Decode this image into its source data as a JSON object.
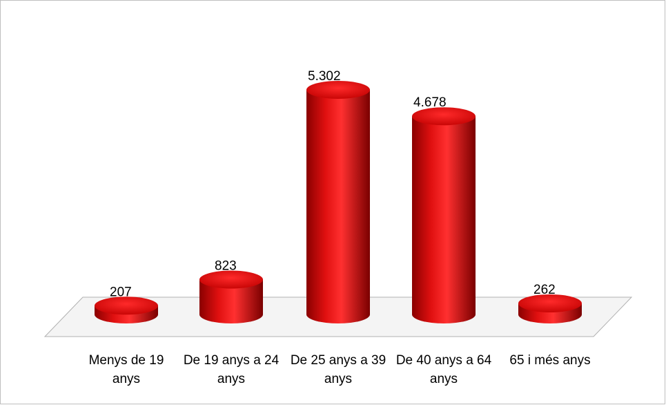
{
  "chart_data": {
    "type": "bar3d",
    "categories": [
      "Menys de 19 anys",
      "De 19 anys a 24 anys",
      "De 25 anys a 39 anys",
      "De 40 anys a 64 anys",
      "65 i més anys"
    ],
    "values": [
      207,
      823,
      5302,
      4678,
      262
    ],
    "value_labels": [
      "207",
      "823",
      "5.302",
      "4.678",
      "262"
    ],
    "color": "#d40000"
  }
}
